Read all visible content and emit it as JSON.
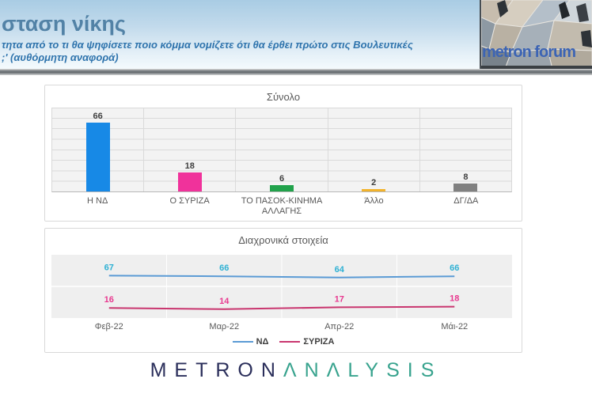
{
  "header": {
    "title": "σταση νίκης",
    "subtitle_line1": "τητα από το τι θα ψηφίσετε ποιο κόμμα νομίζετε ότι θα έρθει πρώτο στις Βουλευτικές",
    "subtitle_line2": ";' (αυθόρμητη αναφορά)",
    "logo_text": "metron forum"
  },
  "chart_data": [
    {
      "type": "bar",
      "title": "Σύνολο",
      "categories": [
        "Η ΝΔ",
        "Ο ΣΥΡΙΖΑ",
        "ΤΟ ΠΑΣΟΚ-ΚΙΝΗΜΑ ΑΛΛΑΓΗΣ",
        "Άλλο",
        "ΔΓ/ΔΑ"
      ],
      "values": [
        66,
        18,
        6,
        2,
        8
      ],
      "bar_colors": [
        "#1789e6",
        "#f0329b",
        "#21a24b",
        "#f2b32c",
        "#808080"
      ],
      "value_label_color": "#3f3f3f",
      "ylim": [
        0,
        80
      ],
      "gridline_step": 10,
      "grid": true,
      "xlabel": "",
      "ylabel": ""
    },
    {
      "type": "line",
      "title": "Διαχρονικά στοιχεία",
      "categories": [
        "Φεβ-22",
        "Μαρ-22",
        "Απρ-22",
        "Μάι-22"
      ],
      "series": [
        {
          "name": "ΝΔ",
          "values": [
            67,
            66,
            64,
            66
          ],
          "line_color": "#5b9bd5",
          "label_color": "#2fb1d4"
        },
        {
          "name": "ΣΥΡΙΖΑ",
          "values": [
            16,
            14,
            17,
            18
          ],
          "line_color": "#c9366f",
          "label_color": "#e8388f"
        }
      ],
      "ylim": [
        0,
        100
      ],
      "gridline_y": 50,
      "band_color": "#efefef",
      "legend_position": "bottom",
      "xlabel": "",
      "ylabel": ""
    }
  ],
  "footer": {
    "brand_metron": "METRON",
    "brand_analysis": "ΛNΛLYSIS"
  }
}
